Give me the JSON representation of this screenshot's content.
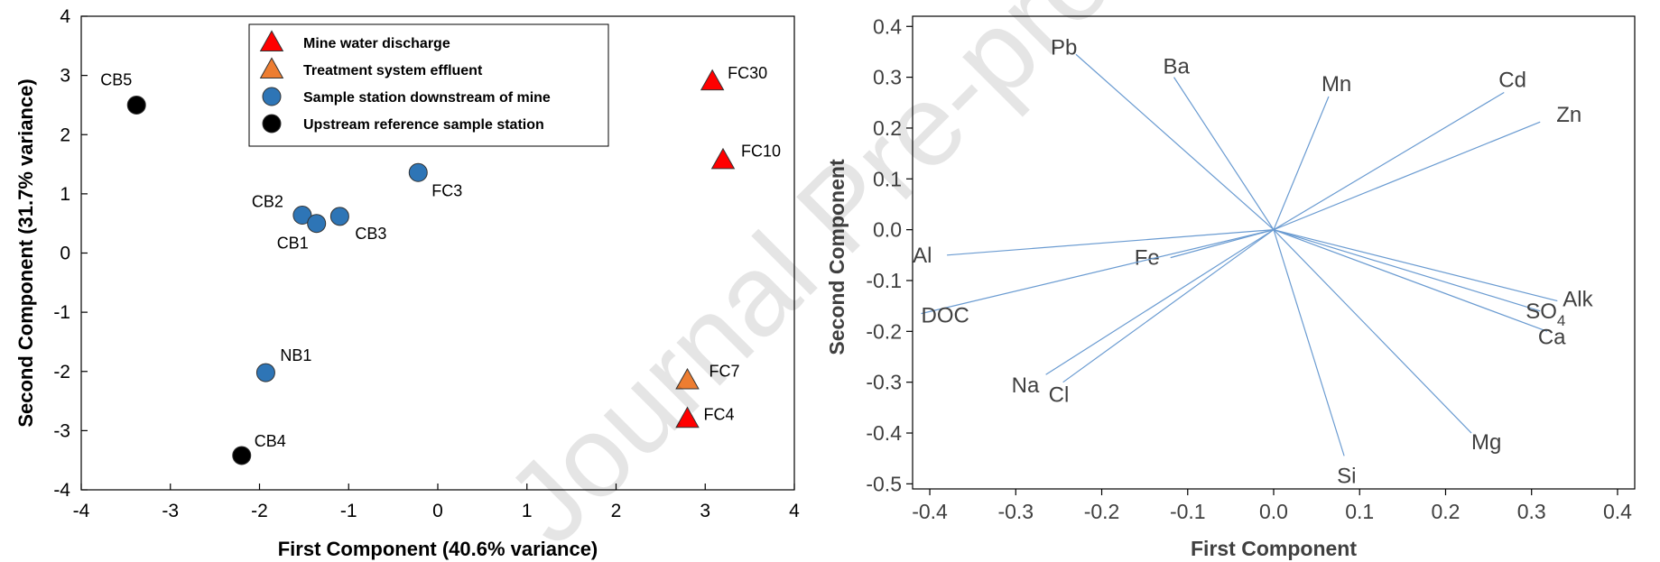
{
  "chart_data": [
    {
      "type": "scatter",
      "xlabel": "First Component (40.6% variance)",
      "ylabel": "Second Component (31.7% variance)",
      "xlim": [
        -4,
        4
      ],
      "ylim": [
        -4,
        4
      ],
      "xticks": [
        "-4",
        "-3",
        "-2",
        "-1",
        "0",
        "1",
        "2",
        "3",
        "4"
      ],
      "yticks": [
        "-4",
        "-3",
        "-2",
        "-1",
        "0",
        "1",
        "2",
        "3",
        "4"
      ],
      "legend_position": "top-center",
      "legend": [
        {
          "label": "Mine water discharge",
          "marker": "triangle",
          "color": "#ff0000"
        },
        {
          "label": "Treatment system effluent",
          "marker": "triangle",
          "color": "#ed7d31"
        },
        {
          "label": "Sample station downstream of mine",
          "marker": "circle",
          "color": "#2e75b6"
        },
        {
          "label": "Upstream reference sample station",
          "marker": "circle",
          "color": "#000000"
        }
      ],
      "points": [
        {
          "label": "CB5",
          "x": -3.38,
          "y": 2.5,
          "group": 3
        },
        {
          "label": "FC30",
          "x": 3.08,
          "y": 2.9,
          "group": 0
        },
        {
          "label": "FC10",
          "x": 3.2,
          "y": 1.57,
          "group": 0
        },
        {
          "label": "FC3",
          "x": -0.22,
          "y": 1.36,
          "group": 2
        },
        {
          "label": "CB2",
          "x": -1.52,
          "y": 0.64,
          "group": 2
        },
        {
          "label": "CB1",
          "x": -1.36,
          "y": 0.5,
          "group": 2
        },
        {
          "label": "CB3",
          "x": -1.1,
          "y": 0.62,
          "group": 2
        },
        {
          "label": "NB1",
          "x": -1.93,
          "y": -2.02,
          "group": 2
        },
        {
          "label": "FC7",
          "x": 2.8,
          "y": -2.15,
          "group": 1
        },
        {
          "label": "FC4",
          "x": 2.8,
          "y": -2.8,
          "group": 0
        },
        {
          "label": "CB4",
          "x": -2.2,
          "y": -3.42,
          "group": 3
        }
      ]
    },
    {
      "type": "biplot",
      "xlabel": "First Component",
      "ylabel": "Second Component",
      "xlim": [
        -0.42,
        0.42
      ],
      "ylim": [
        -0.51,
        0.42
      ],
      "xticks": [
        "-0.4",
        "-0.3",
        "-0.2",
        "-0.1",
        "0.0",
        "0.1",
        "0.2",
        "0.3",
        "0.4"
      ],
      "yticks": [
        "-0.5",
        "-0.4",
        "-0.3",
        "-0.2",
        "-0.1",
        "0.0",
        "0.1",
        "0.2",
        "0.3",
        "0.4"
      ],
      "line_color": "#6a9bd1",
      "vectors": [
        {
          "label": "Pb",
          "x": -0.23,
          "y": 0.345
        },
        {
          "label": "Ba",
          "x": -0.116,
          "y": 0.3
        },
        {
          "label": "Mn",
          "x": 0.064,
          "y": 0.262
        },
        {
          "label": "Cd",
          "x": 0.268,
          "y": 0.27
        },
        {
          "label": "Zn",
          "x": 0.31,
          "y": 0.212
        },
        {
          "label": "Al",
          "x": -0.38,
          "y": -0.05
        },
        {
          "label": "Fe",
          "x": -0.12,
          "y": -0.055
        },
        {
          "label": "DOC",
          "x": -0.41,
          "y": -0.165
        },
        {
          "label": "Alk",
          "x": 0.33,
          "y": -0.14
        },
        {
          "label": "SO",
          "sub": "4",
          "x": 0.31,
          "y": -0.16
        },
        {
          "label": "Ca",
          "x": 0.318,
          "y": -0.2
        },
        {
          "label": "Na",
          "x": -0.265,
          "y": -0.285
        },
        {
          "label": "Cl",
          "x": -0.245,
          "y": -0.3
        },
        {
          "label": "Mg",
          "x": 0.23,
          "y": -0.4
        },
        {
          "label": "Si",
          "x": 0.082,
          "y": -0.445
        }
      ]
    }
  ],
  "watermark": "Journal Pre-proof"
}
